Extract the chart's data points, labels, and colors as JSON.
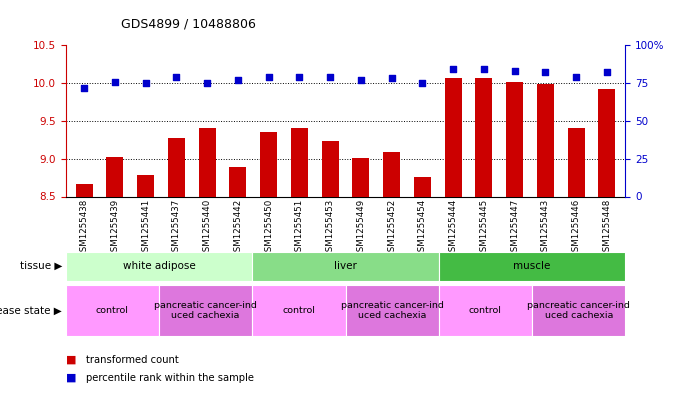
{
  "title": "GDS4899 / 10488806",
  "samples": [
    "GSM1255438",
    "GSM1255439",
    "GSM1255441",
    "GSM1255437",
    "GSM1255440",
    "GSM1255442",
    "GSM1255450",
    "GSM1255451",
    "GSM1255453",
    "GSM1255449",
    "GSM1255452",
    "GSM1255454",
    "GSM1255444",
    "GSM1255445",
    "GSM1255447",
    "GSM1255443",
    "GSM1255446",
    "GSM1255448"
  ],
  "transformed_count": [
    8.67,
    9.02,
    8.78,
    9.27,
    9.4,
    8.89,
    9.35,
    9.4,
    9.23,
    9.01,
    9.09,
    8.76,
    10.07,
    10.07,
    10.01,
    9.99,
    9.41,
    9.92
  ],
  "percentile_rank": [
    72,
    76,
    75,
    79,
    75,
    77,
    79,
    79,
    79,
    77,
    78,
    75,
    84,
    84,
    83,
    82,
    79,
    82
  ],
  "bar_color": "#cc0000",
  "dot_color": "#0000cc",
  "ylim_left": [
    8.5,
    10.5
  ],
  "ylim_right": [
    0,
    100
  ],
  "yticks_left": [
    8.5,
    9.0,
    9.5,
    10.0,
    10.5
  ],
  "yticks_right": [
    0,
    25,
    50,
    75,
    100
  ],
  "tissue_groups": [
    {
      "label": "white adipose",
      "start": 0,
      "end": 6,
      "color": "#ccffcc"
    },
    {
      "label": "liver",
      "start": 6,
      "end": 12,
      "color": "#88dd88"
    },
    {
      "label": "muscle",
      "start": 12,
      "end": 18,
      "color": "#44bb44"
    }
  ],
  "disease_groups": [
    {
      "label": "control",
      "start": 0,
      "end": 3,
      "color": "#ff99ff"
    },
    {
      "label": "pancreatic cancer-ind\nuced cachexia",
      "start": 3,
      "end": 6,
      "color": "#dd77dd"
    },
    {
      "label": "control",
      "start": 6,
      "end": 9,
      "color": "#ff99ff"
    },
    {
      "label": "pancreatic cancer-ind\nuced cachexia",
      "start": 9,
      "end": 12,
      "color": "#dd77dd"
    },
    {
      "label": "control",
      "start": 12,
      "end": 15,
      "color": "#ff99ff"
    },
    {
      "label": "pancreatic cancer-ind\nuced cachexia",
      "start": 15,
      "end": 18,
      "color": "#dd77dd"
    }
  ],
  "tissue_label": "tissue",
  "disease_label": "disease state",
  "legend_bar_label": "transformed count",
  "legend_dot_label": "percentile rank within the sample",
  "left_axis_color": "#cc0000",
  "right_axis_color": "#0000cc",
  "background_color": "#ffffff",
  "plot_bg_color": "#ffffff",
  "xtick_bg_color": "#dddddd"
}
